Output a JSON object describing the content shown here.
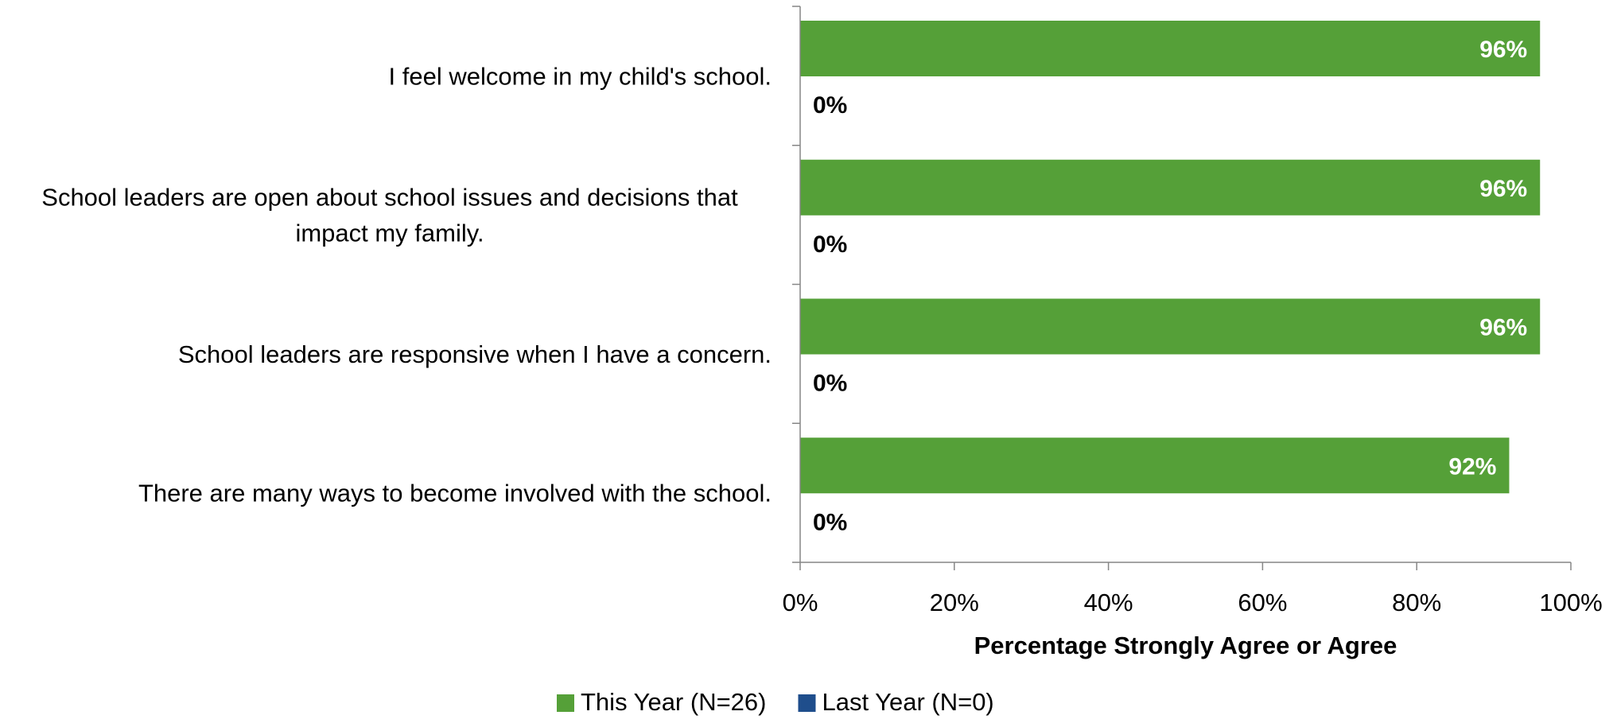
{
  "chart_data": {
    "type": "bar",
    "orientation": "horizontal",
    "title": "",
    "xlabel": "Percentage Strongly Agree or Agree",
    "ylabel": "",
    "xlim": [
      0,
      100
    ],
    "xticks": [
      0,
      20,
      40,
      60,
      80,
      100
    ],
    "tick_suffix": "%",
    "grid": false,
    "legend_position": "bottom",
    "categories": [
      [
        "I feel welcome in my child's school."
      ],
      [
        "School leaders are open about school issues and decisions that",
        "impact my family."
      ],
      [
        "School leaders are responsive when I have a concern."
      ],
      [
        "There are many ways to become involved with the school."
      ]
    ],
    "series": [
      {
        "name": "This Year (N=26)",
        "color": "#55a038",
        "label_color": "#ffffff",
        "values": [
          96,
          96,
          96,
          92
        ]
      },
      {
        "name": "Last Year (N=0)",
        "color": "#1f4e8c",
        "label_color": "#000000",
        "values": [
          0,
          0,
          0,
          0
        ]
      }
    ]
  }
}
